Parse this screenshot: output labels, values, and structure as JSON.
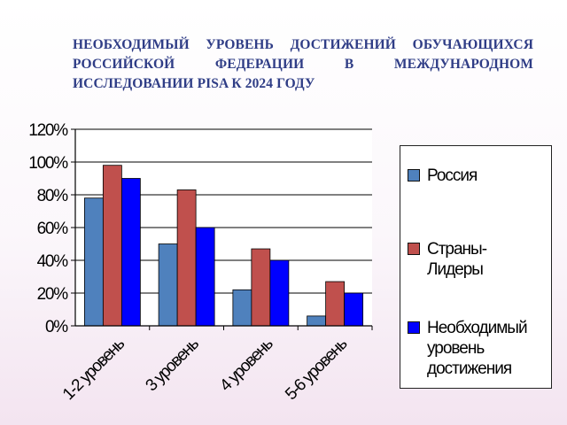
{
  "slide": {
    "title": "НЕОБХОДИМЫЙ УРОВЕНЬ ДОСТИЖЕНИЙ ОБУЧАЮЩИХСЯ РОССИЙСКОЙ ФЕДЕРАЦИИ В МЕЖДУНАРОДНОМ ИССЛЕДОВАНИИ PISA К 2024 ГОДУ"
  },
  "chart_data": {
    "type": "bar",
    "categories": [
      "1-2 уровень",
      "3 уровень",
      "4 уровень",
      "5-6 уровень"
    ],
    "series": [
      {
        "name": "Россия",
        "values": [
          78,
          50,
          22,
          6
        ],
        "color": "#4f81bd"
      },
      {
        "name": "Страны-Лидеры",
        "values": [
          98,
          83,
          47,
          27
        ],
        "color": "#c0504d"
      },
      {
        "name": "Необходимый уровень достижения",
        "values": [
          90,
          60,
          40,
          20
        ],
        "color": "#0000ff"
      }
    ],
    "yticks": [
      "0%",
      "20%",
      "40%",
      "60%",
      "80%",
      "100%",
      "120%"
    ],
    "ylim": [
      0,
      120
    ],
    "grid": true,
    "legend_position": "right",
    "title": "",
    "xlabel": "",
    "ylabel": ""
  }
}
